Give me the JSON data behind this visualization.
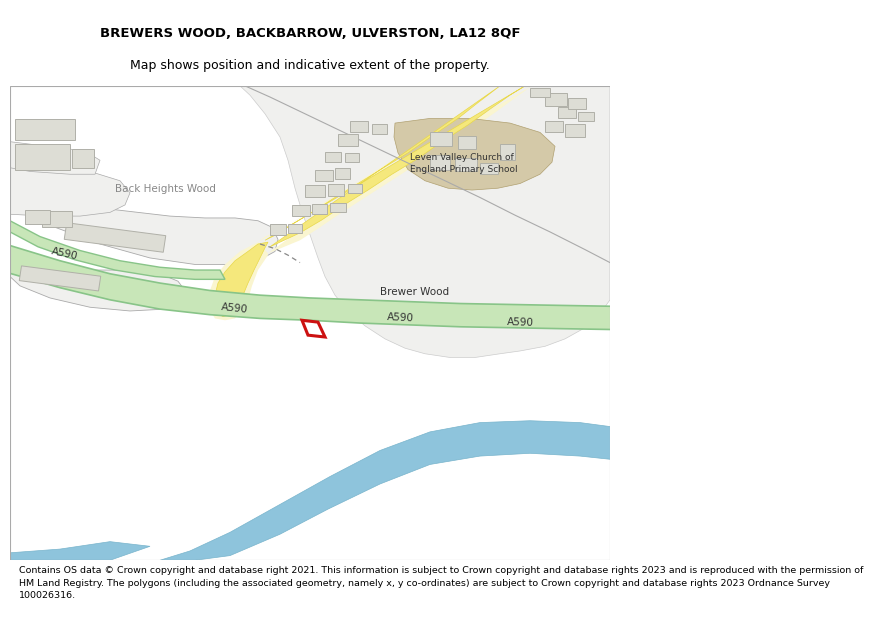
{
  "title_line1": "BREWERS WOOD, BACKBARROW, ULVERSTON, LA12 8QF",
  "title_line2": "Map shows position and indicative extent of the property.",
  "footer_text": "Contains OS data © Crown copyright and database right 2021. This information is subject to Crown copyright and database rights 2023 and is reproduced with the permission of\nHM Land Registry. The polygons (including the associated geometry, namely x, y co-ordinates) are subject to Crown copyright and database rights 2023 Ordnance Survey\n100026316.",
  "bg_green": "#5f9450",
  "white_area": "#f0f0ee",
  "road_yellow_fill": "#f5e87c",
  "road_yellow_edge": "#e8d84a",
  "road_cream": "#faf5d0",
  "road_a590_fill": "#c8e6b8",
  "road_a590_edge": "#88c488",
  "water_blue": "#8ec4dc",
  "building_fill": "#ddddd5",
  "building_edge": "#b0b0a8",
  "school_fill": "#d4c9a8",
  "plot_edge": "#cc1111",
  "plot_fill": "#ffffff",
  "label_dark": "#333333",
  "label_gray": "#888888",
  "title_fontsize": 9.5,
  "footer_fontsize": 6.8
}
